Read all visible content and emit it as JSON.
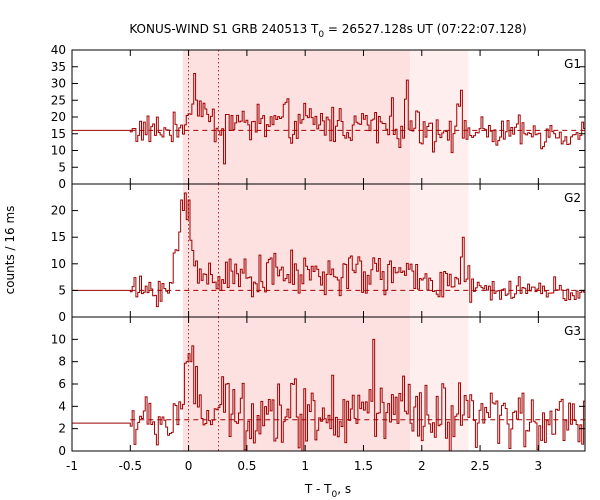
{
  "chart_data": {
    "type": "line",
    "title": {
      "main": "KONUS-WIND S1 GRB 240513 T",
      "sub": "0",
      "rest": " = 26527.128s UT (07:22:07.128)"
    },
    "xlabel": {
      "main": "T - T",
      "sub": "0",
      "rest": ", s"
    },
    "ylabel": "counts / 16 ms",
    "xlim": [
      -1,
      3.4
    ],
    "x_ticks": [
      {
        "value": -1,
        "label": "-1"
      },
      {
        "value": -0.5,
        "label": "-0.5"
      },
      {
        "value": 0,
        "label": "0"
      },
      {
        "value": 0.5,
        "label": "0.5"
      },
      {
        "value": 1,
        "label": "1"
      },
      {
        "value": 1.5,
        "label": "1.5"
      },
      {
        "value": 2,
        "label": "2"
      },
      {
        "value": 2.5,
        "label": "2.5"
      },
      {
        "value": 3,
        "label": "3"
      }
    ],
    "shaded_regions": [
      {
        "x0": -0.05,
        "x1": 1.9,
        "color": "#fde0e0"
      },
      {
        "x0": 1.9,
        "x1": 2.4,
        "color": "#feeeee"
      }
    ],
    "vlines": [
      0.0,
      0.256
    ],
    "line_color": "#a00000",
    "panels": [
      {
        "name": "G1",
        "label": "G1",
        "ylim": [
          0,
          40
        ],
        "y_ticks": [
          {
            "value": 0,
            "label": "0"
          },
          {
            "value": 5,
            "label": "5"
          },
          {
            "value": 10,
            "label": "10"
          },
          {
            "value": 15,
            "label": "15"
          },
          {
            "value": 20,
            "label": "20"
          },
          {
            "value": 25,
            "label": "25"
          },
          {
            "value": 30,
            "label": "30"
          },
          {
            "value": 35,
            "label": "35"
          },
          {
            "value": 40,
            "label": "40"
          }
        ],
        "background": 16,
        "pre_level": 16,
        "peak_x": 0.05,
        "peak_extra": 9,
        "main_level": 18,
        "main_noise": 5,
        "tail_level": 15,
        "tail_noise": 3.5,
        "spikes": [
          {
            "x": 0.045,
            "y": 33
          },
          {
            "x": 1.87,
            "y": 31
          },
          {
            "x": 2.34,
            "y": 28
          },
          {
            "x": 0.3,
            "y": 6
          }
        ]
      },
      {
        "name": "G2",
        "label": "G2",
        "ylim": [
          0,
          25
        ],
        "y_ticks": [
          {
            "value": 0,
            "label": "0"
          },
          {
            "value": 5,
            "label": "5"
          },
          {
            "value": 10,
            "label": "10"
          },
          {
            "value": 15,
            "label": "15"
          },
          {
            "value": 20,
            "label": "20"
          }
        ],
        "background": 5,
        "pre_level": 5,
        "peak_x": -0.05,
        "peak_extra": 15,
        "main_level": 8,
        "main_noise": 3,
        "tail_level": 5,
        "tail_noise": 2,
        "spikes": [
          {
            "x": -0.07,
            "y": 22
          },
          {
            "x": 0.0,
            "y": 22
          },
          {
            "x": 2.35,
            "y": 15
          }
        ]
      },
      {
        "name": "G3",
        "label": "G3",
        "ylim": [
          0,
          12
        ],
        "y_ticks": [
          {
            "value": 0,
            "label": "0"
          },
          {
            "value": 2,
            "label": "2"
          },
          {
            "value": 4,
            "label": "4"
          },
          {
            "value": 6,
            "label": "6"
          },
          {
            "value": 8,
            "label": "8"
          },
          {
            "value": 10,
            "label": "10"
          }
        ],
        "background": 2.8,
        "pre_level": 2.5,
        "peak_x": -0.02,
        "peak_extra": 4,
        "main_level": 3.5,
        "main_noise": 2.5,
        "tail_level": 2.8,
        "tail_noise": 2,
        "spikes": [
          {
            "x": 1.58,
            "y": 10
          },
          {
            "x": -0.02,
            "y": 8
          },
          {
            "x": 0.015,
            "y": 8
          }
        ]
      }
    ]
  }
}
